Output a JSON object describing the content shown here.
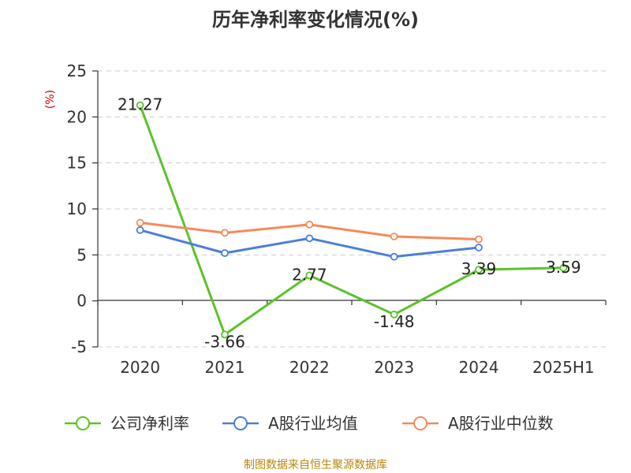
{
  "chart_data": {
    "type": "line",
    "title": "历年净利率变化情况(%)",
    "ylabel": "(%)",
    "xlabel": "",
    "categories": [
      "2020",
      "2021",
      "2022",
      "2023",
      "2024",
      "2025H1"
    ],
    "ylim": [
      -5,
      25
    ],
    "yticks": [
      -5,
      0,
      5,
      10,
      15,
      20,
      25
    ],
    "grid": true,
    "legend_position": "bottom",
    "series": [
      {
        "name": "公司净利率",
        "color": "#5ac328",
        "values": [
          21.27,
          -3.66,
          2.77,
          -1.48,
          3.39,
          3.59
        ],
        "labels": [
          "21.27",
          "-3.66",
          "2.77",
          "-1.48",
          "3.39",
          "3.59"
        ]
      },
      {
        "name": "A股行业均值",
        "color": "#4a7fd8",
        "values": [
          7.7,
          5.2,
          6.8,
          4.8,
          5.8,
          null
        ]
      },
      {
        "name": "A股行业中位数",
        "color": "#f48b5a",
        "values": [
          8.5,
          7.4,
          8.3,
          7.0,
          6.7,
          null
        ]
      }
    ]
  },
  "footer": "制图数据来自恒生聚源数据库"
}
